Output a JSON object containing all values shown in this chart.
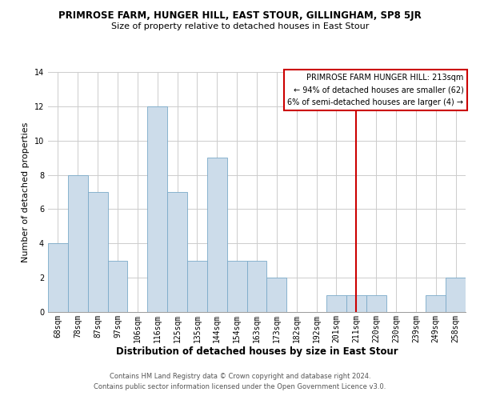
{
  "title": "PRIMROSE FARM, HUNGER HILL, EAST STOUR, GILLINGHAM, SP8 5JR",
  "subtitle": "Size of property relative to detached houses in East Stour",
  "xlabel": "Distribution of detached houses by size in East Stour",
  "ylabel": "Number of detached properties",
  "categories": [
    "68sqm",
    "78sqm",
    "87sqm",
    "97sqm",
    "106sqm",
    "116sqm",
    "125sqm",
    "135sqm",
    "144sqm",
    "154sqm",
    "163sqm",
    "173sqm",
    "182sqm",
    "192sqm",
    "201sqm",
    "211sqm",
    "220sqm",
    "230sqm",
    "239sqm",
    "249sqm",
    "258sqm"
  ],
  "values": [
    4,
    8,
    7,
    3,
    0,
    12,
    7,
    3,
    9,
    3,
    3,
    2,
    0,
    0,
    1,
    1,
    1,
    0,
    0,
    1,
    2
  ],
  "bar_color": "#ccdcea",
  "bar_edgecolor": "#7aaac8",
  "vline_x_idx": 15,
  "vline_color": "#cc0000",
  "ylim": [
    0,
    14
  ],
  "yticks": [
    0,
    2,
    4,
    6,
    8,
    10,
    12,
    14
  ],
  "legend_text_line1": "PRIMROSE FARM HUNGER HILL: 213sqm",
  "legend_text_line2": "← 94% of detached houses are smaller (62)",
  "legend_text_line3": "6% of semi-detached houses are larger (4) →",
  "legend_box_facecolor": "#ffffff",
  "legend_box_edgecolor": "#cc0000",
  "footer_line1": "Contains HM Land Registry data © Crown copyright and database right 2024.",
  "footer_line2": "Contains public sector information licensed under the Open Government Licence v3.0.",
  "bg_color": "#ffffff",
  "grid_color": "#cccccc",
  "title_fontsize": 8.5,
  "subtitle_fontsize": 8,
  "ylabel_fontsize": 8,
  "xlabel_fontsize": 8.5,
  "tick_fontsize": 7,
  "legend_fontsize": 7,
  "footer_fontsize": 6
}
